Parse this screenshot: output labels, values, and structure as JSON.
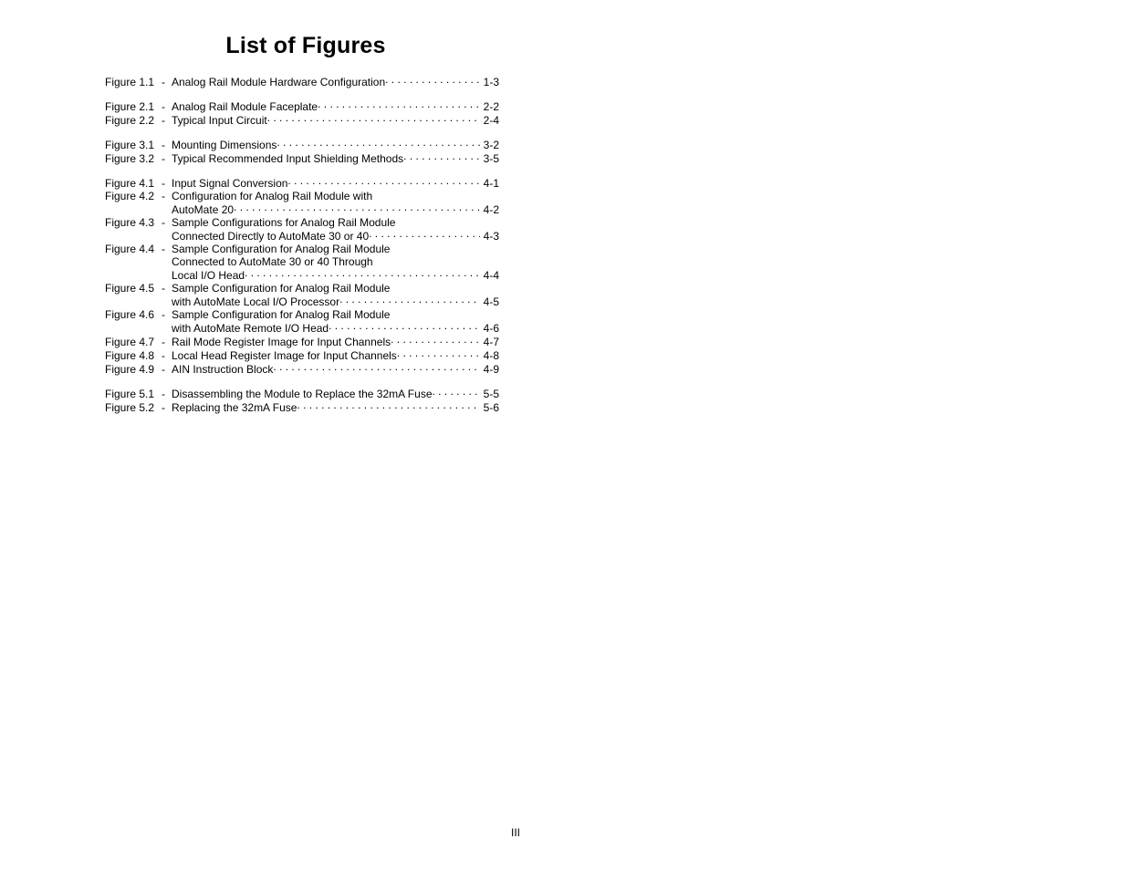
{
  "title": "List of Figures",
  "footer": "III",
  "groups": [
    {
      "entries": [
        {
          "label": "Figure 1.1",
          "lines": [
            "Analog Rail Module Hardware Configuration"
          ],
          "page": "1-3"
        }
      ]
    },
    {
      "entries": [
        {
          "label": "Figure 2.1",
          "lines": [
            "Analog Rail Module Faceplate"
          ],
          "page": "2-2"
        },
        {
          "label": "Figure 2.2",
          "lines": [
            "Typical Input Circuit"
          ],
          "page": "2-4"
        }
      ]
    },
    {
      "entries": [
        {
          "label": "Figure 3.1",
          "lines": [
            "Mounting Dimensions"
          ],
          "page": "3-2"
        },
        {
          "label": "Figure 3.2",
          "lines": [
            "Typical Recommended Input Shielding Methods"
          ],
          "page": "3-5"
        }
      ]
    },
    {
      "entries": [
        {
          "label": "Figure 4.1",
          "lines": [
            "Input Signal Conversion"
          ],
          "page": "4-1"
        },
        {
          "label": "Figure 4.2",
          "lines": [
            "Configuration for Analog Rail Module with",
            "AutoMate 20"
          ],
          "page": "4-2"
        },
        {
          "label": "Figure 4.3",
          "lines": [
            "Sample Configurations for Analog Rail Module",
            "Connected Directly to AutoMate 30 or 40"
          ],
          "page": "4-3"
        },
        {
          "label": "Figure 4.4",
          "lines": [
            "Sample Configuration for Analog Rail Module",
            "Connected to AutoMate 30 or 40 Through",
            "Local I/O Head"
          ],
          "page": "4-4"
        },
        {
          "label": "Figure 4.5",
          "lines": [
            "Sample Configuration for Analog Rail Module",
            "with AutoMate Local I/O Processor"
          ],
          "page": "4-5"
        },
        {
          "label": "Figure 4.6",
          "lines": [
            "Sample Configuration for Analog Rail Module",
            "with AutoMate Remote I/O Head"
          ],
          "page": "4-6"
        },
        {
          "label": "Figure 4.7",
          "lines": [
            "Rail Mode Register Image for Input Channels"
          ],
          "page": "4-7"
        },
        {
          "label": "Figure 4.8",
          "lines": [
            "Local Head Register Image for Input Channels"
          ],
          "page": "4-8"
        },
        {
          "label": "Figure 4.9",
          "lines": [
            "AIN Instruction Block"
          ],
          "page": "4-9"
        }
      ]
    },
    {
      "entries": [
        {
          "label": "Figure 5.1",
          "lines": [
            "Disassembling the Module to Replace the 32mA Fuse"
          ],
          "page": "5-5"
        },
        {
          "label": "Figure 5.2",
          "lines": [
            "Replacing the 32mA Fuse"
          ],
          "page": "5-6"
        }
      ]
    }
  ]
}
